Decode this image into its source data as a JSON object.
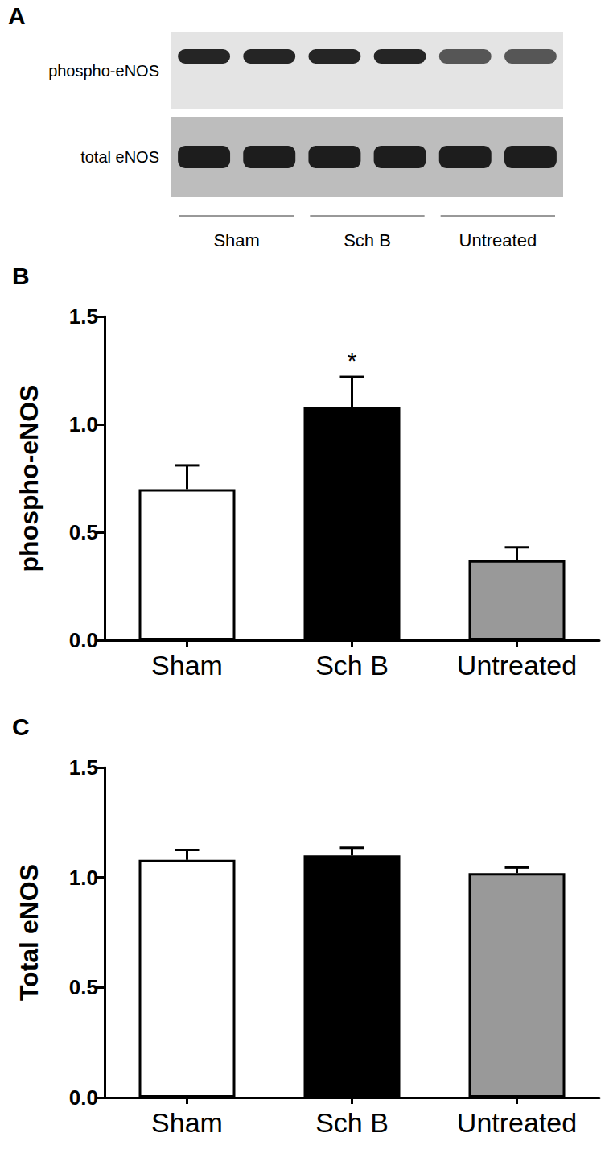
{
  "blot": {
    "panel": "A",
    "rows": [
      "phospho-eNOS",
      "total eNOS"
    ],
    "groups": [
      "Sham",
      "Sch B",
      "Untreated"
    ]
  },
  "chart_data": [
    {
      "type": "bar",
      "title": "B",
      "ylabel": "phospho-eNOS",
      "categories": [
        "Sham",
        "Sch B",
        "Untreated"
      ],
      "values": [
        0.7,
        1.08,
        0.37
      ],
      "errors": [
        0.11,
        0.14,
        0.06
      ],
      "colors": [
        "#ffffff",
        "#000000",
        "#999999"
      ],
      "ylim": [
        0,
        1.5
      ],
      "yticks": [
        {
          "value": 0,
          "label": "0.0"
        },
        0.5,
        {
          "value": 1,
          "label": "1.0"
        },
        1.5
      ],
      "annotations": [
        {
          "category": "Sch B",
          "text": "*"
        }
      ],
      "grid": false
    },
    {
      "type": "bar",
      "title": "C",
      "ylabel": "Total eNOS",
      "categories": [
        "Sham",
        "Sch B",
        "Untreated"
      ],
      "values": [
        1.08,
        1.1,
        1.02
      ],
      "errors": [
        0.045,
        0.035,
        0.025
      ],
      "colors": [
        "#ffffff",
        "#000000",
        "#999999"
      ],
      "ylim": [
        0,
        1.5
      ],
      "yticks": [
        {
          "value": 0,
          "label": "0.0"
        },
        0.5,
        {
          "value": 1,
          "label": "1.0"
        },
        1.5
      ],
      "grid": false
    }
  ]
}
